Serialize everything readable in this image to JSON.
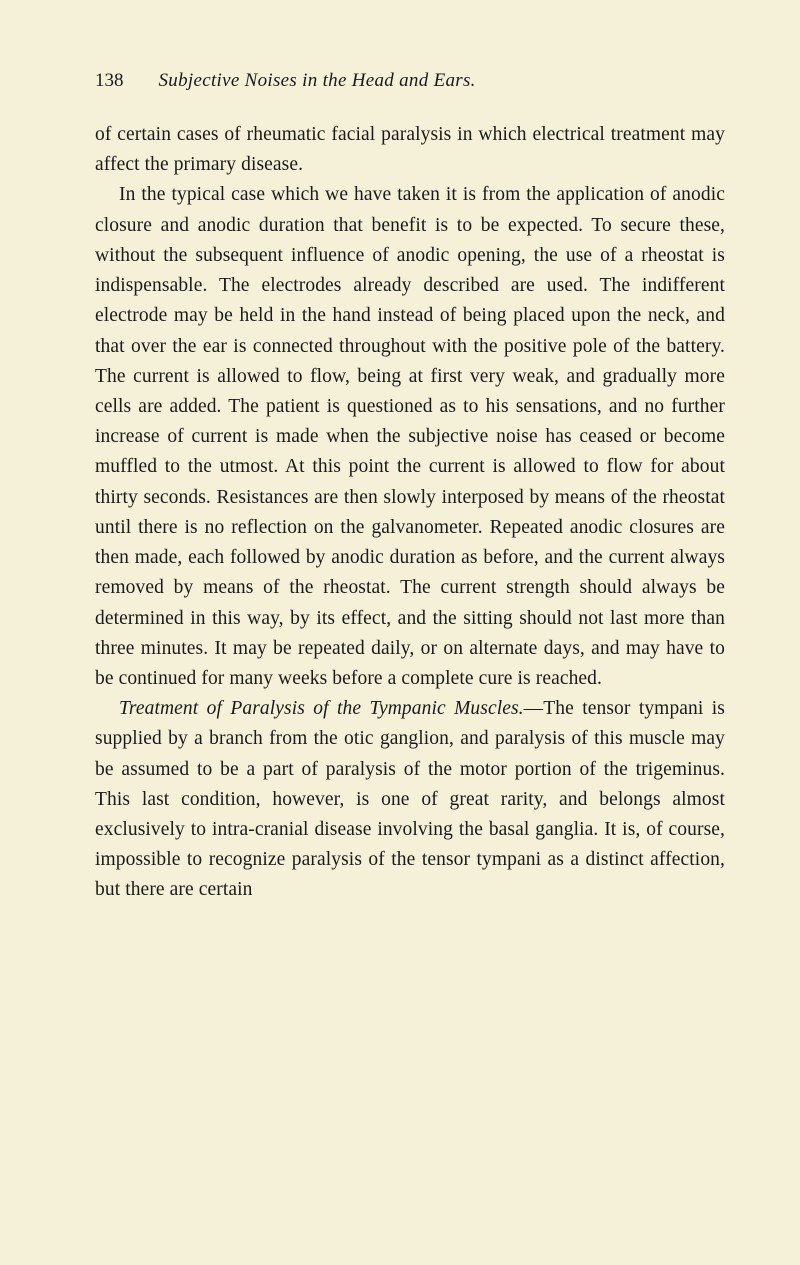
{
  "page": {
    "number": "138",
    "runningTitle": "Subjective Noises in the Head and Ears."
  },
  "paragraphs": {
    "p1": "of certain cases of rheumatic facial paralysis in which electrical treatment may affect the primary disease.",
    "p2": "In the typical case which we have taken it is from the application of anodic closure and anodic duration that benefit is to be expected. To secure these, without the subsequent influence of anodic opening, the use of a rheostat is indispensable. The electrodes already described are used. The indifferent electrode may be held in the hand instead of being placed upon the neck, and that over the ear is connected throughout with the positive pole of the battery. The current is allowed to flow, being at first very weak, and gradually more cells are added. The patient is questioned as to his sensations, and no further increase of current is made when the subjective noise has ceased or become muffled to the utmost. At this point the current is allowed to flow for about thirty seconds. Resistances are then slowly interposed by means of the rheostat until there is no reflection on the galvanometer. Repeated anodic closures are then made, each followed by anodic duration as before, and the current always removed by means of the rheostat. The current strength should always be determined in this way, by its effect, and the sitting should not last more than three minutes. It may be repeated daily, or on alternate days, and may have to be continued for many weeks before a complete cure is reached.",
    "p3_italic": "Treatment of Paralysis of the Tympanic Muscles.",
    "p3_rest": "—The tensor tympani is supplied by a branch from the otic ganglion, and paralysis of this muscle may be assumed to be a part of paralysis of the motor portion of the trigeminus. This last condition, however, is one of great rarity, and belongs almost exclusively to intra-cranial disease involving the basal ganglia. It is, of course, impossible to recognize paralysis of the tensor tympani as a distinct affection, but there are certain"
  },
  "colors": {
    "background": "#f5f0d8",
    "text": "#1a1a1a"
  },
  "typography": {
    "bodyFontSize": 19.5,
    "headerFontSize": 19,
    "lineHeight": 1.55,
    "fontFamily": "Georgia, Times New Roman, serif"
  }
}
